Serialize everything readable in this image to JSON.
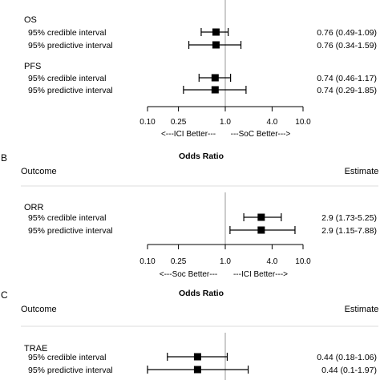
{
  "chart_data": [
    {
      "type": "forest",
      "panel": "",
      "title": "",
      "outcome_header": "",
      "estimate_header": "",
      "scale": "log",
      "xlim": [
        0.1,
        10.0
      ],
      "tick_labels": [
        "0.10",
        "0.25",
        "1.0",
        "4.0",
        "10.0"
      ],
      "tick_values": [
        0.1,
        0.25,
        1.0,
        4.0,
        10.0
      ],
      "direction_left": "<---ICI Better---",
      "direction_right": "---SoC Better--->",
      "groups": [
        {
          "name": "OS",
          "rows": [
            {
              "label": "95% credible interval",
              "est": 0.76,
              "lo": 0.49,
              "hi": 1.09,
              "text": "0.76 (0.49-1.09)"
            },
            {
              "label": "95% predictive interval",
              "est": 0.76,
              "lo": 0.34,
              "hi": 1.59,
              "text": "0.76 (0.34-1.59)"
            }
          ]
        },
        {
          "name": "PFS",
          "rows": [
            {
              "label": "95% credible interval",
              "est": 0.74,
              "lo": 0.46,
              "hi": 1.17,
              "text": "0.74 (0.46-1.17)"
            },
            {
              "label": "95% predictive interval",
              "est": 0.74,
              "lo": 0.29,
              "hi": 1.85,
              "text": "0.74 (0.29-1.85)"
            }
          ]
        }
      ]
    },
    {
      "type": "forest",
      "panel": "B",
      "title": "Odds Ratio",
      "outcome_header": "Outcome",
      "estimate_header": "Estimate",
      "scale": "log",
      "xlim": [
        0.1,
        10.0
      ],
      "tick_labels": [
        "0.10",
        "0.25",
        "1.0",
        "4.0",
        "10.0"
      ],
      "tick_values": [
        0.1,
        0.25,
        1.0,
        4.0,
        10.0
      ],
      "direction_left": "<---Soc Better---",
      "direction_right": "---ICI Better--->",
      "groups": [
        {
          "name": "ORR",
          "rows": [
            {
              "label": "95% credible interval",
              "est": 2.9,
              "lo": 1.73,
              "hi": 5.25,
              "text": "2.9 (1.73-5.25)"
            },
            {
              "label": "95% predictive interval",
              "est": 2.9,
              "lo": 1.15,
              "hi": 7.88,
              "text": "2.9 (1.15-7.88)"
            }
          ]
        }
      ]
    },
    {
      "type": "forest",
      "panel": "C",
      "title": "Odds Ratio",
      "outcome_header": "Outcome",
      "estimate_header": "Estimate",
      "scale": "log",
      "xlim": [
        0.1,
        10.0
      ],
      "groups": [
        {
          "name": "TRAE",
          "rows": [
            {
              "label": "95% credible interval",
              "est": 0.44,
              "lo": 0.18,
              "hi": 1.06,
              "text": "0.44 (0.18-1.06)"
            },
            {
              "label": "95% predictive interval",
              "est": 0.44,
              "lo": 0.1,
              "hi": 1.97,
              "text": "0.44 (0.1-1.97)"
            }
          ]
        }
      ]
    }
  ]
}
